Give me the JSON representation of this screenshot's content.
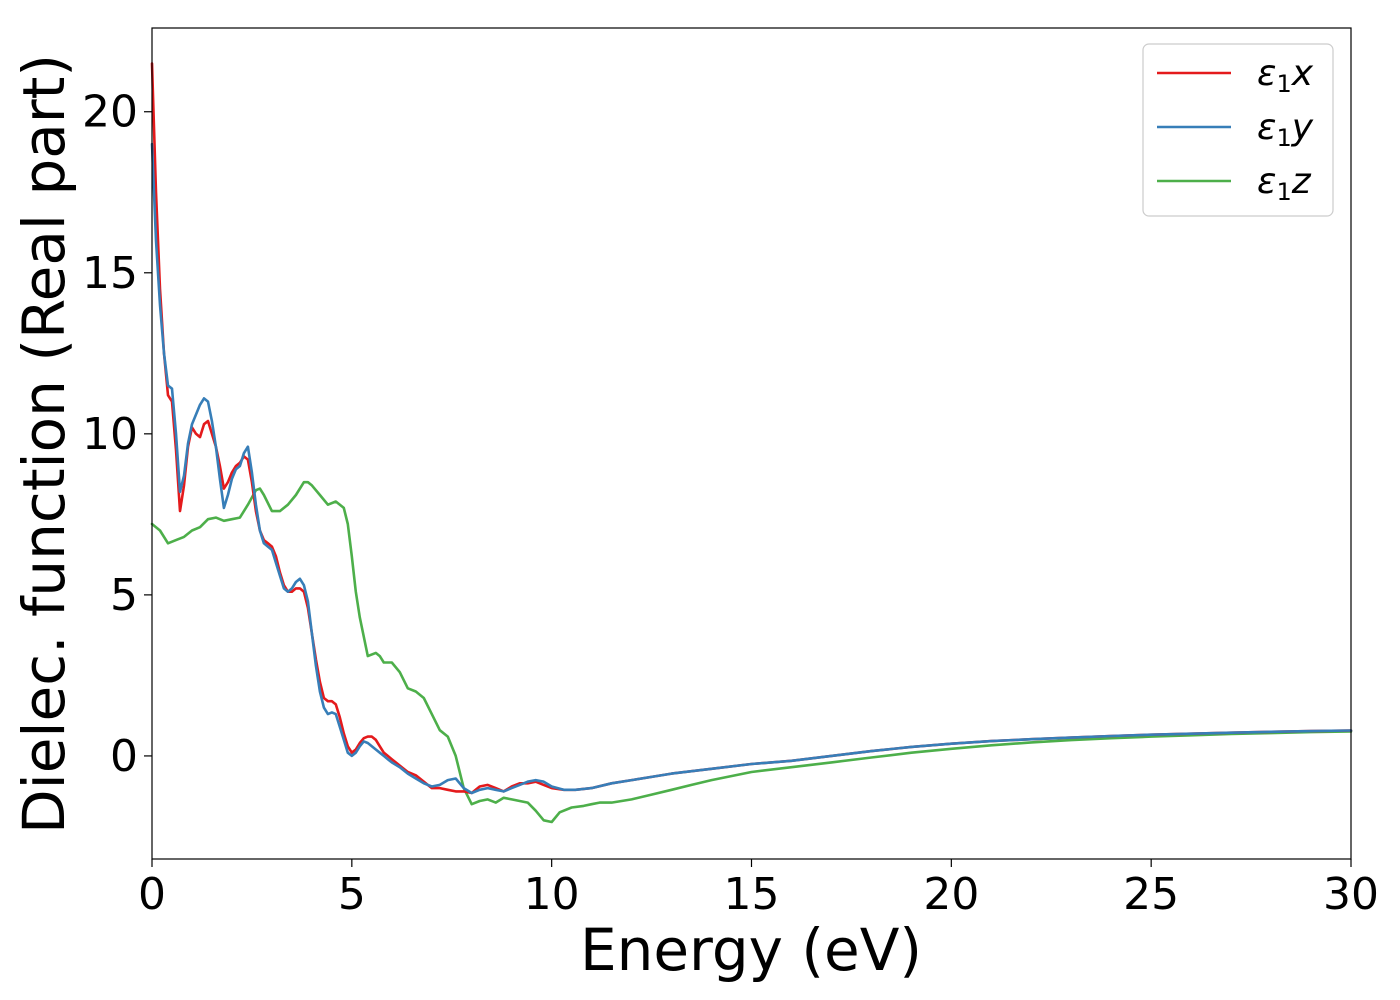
{
  "chart_data": {
    "type": "line",
    "title": "",
    "xlabel": "Energy (eV)",
    "ylabel": "Dielec. function (Real part)",
    "xlim": [
      0,
      30
    ],
    "ylim": [
      -3.2,
      22.6
    ],
    "xticks": [
      0,
      5,
      10,
      15,
      20,
      25,
      30
    ],
    "yticks": [
      0,
      5,
      10,
      15,
      20
    ],
    "grid": false,
    "legend_position": "top-right",
    "series": [
      {
        "name": "ε1x",
        "legend_base": "ε",
        "legend_sub": "1",
        "legend_axis": "x",
        "color": "#e41a1c",
        "x": [
          0.0,
          0.1,
          0.2,
          0.3,
          0.4,
          0.5,
          0.6,
          0.7,
          0.8,
          0.9,
          1.0,
          1.1,
          1.2,
          1.3,
          1.4,
          1.5,
          1.6,
          1.7,
          1.8,
          1.9,
          2.0,
          2.1,
          2.2,
          2.3,
          2.4,
          2.5,
          2.6,
          2.7,
          2.8,
          2.9,
          3.0,
          3.1,
          3.2,
          3.3,
          3.4,
          3.5,
          3.6,
          3.7,
          3.8,
          3.9,
          4.0,
          4.1,
          4.2,
          4.3,
          4.4,
          4.5,
          4.6,
          4.7,
          4.8,
          4.9,
          5.0,
          5.1,
          5.2,
          5.3,
          5.4,
          5.5,
          5.6,
          5.7,
          5.8,
          5.9,
          6.0,
          6.2,
          6.4,
          6.6,
          6.8,
          7.0,
          7.2,
          7.4,
          7.6,
          7.8,
          8.0,
          8.2,
          8.4,
          8.6,
          8.8,
          9.0,
          9.2,
          9.4,
          9.6,
          9.8,
          10.0,
          10.3,
          10.6,
          11.0,
          11.5,
          12.0,
          12.5,
          13.0,
          14.0,
          15.0,
          16.0,
          17.0,
          18.0,
          19.0,
          20.0,
          21.0,
          22.0,
          23.0,
          24.0,
          25.0,
          26.0,
          27.0,
          28.0,
          29.0,
          30.0
        ],
        "y": [
          21.5,
          17.5,
          14.5,
          12.5,
          11.2,
          11.0,
          9.5,
          7.6,
          8.4,
          9.6,
          10.2,
          10.0,
          9.9,
          10.3,
          10.4,
          10.0,
          9.6,
          9.0,
          8.3,
          8.5,
          8.8,
          9.0,
          9.1,
          9.3,
          9.2,
          8.5,
          7.6,
          7.0,
          6.7,
          6.6,
          6.5,
          6.2,
          5.7,
          5.3,
          5.1,
          5.1,
          5.2,
          5.2,
          5.1,
          4.6,
          3.8,
          3.0,
          2.3,
          1.8,
          1.7,
          1.7,
          1.6,
          1.2,
          0.7,
          0.3,
          0.1,
          0.2,
          0.4,
          0.55,
          0.6,
          0.6,
          0.5,
          0.3,
          0.1,
          0.0,
          -0.1,
          -0.3,
          -0.5,
          -0.6,
          -0.8,
          -1.0,
          -1.0,
          -1.05,
          -1.1,
          -1.1,
          -1.15,
          -0.95,
          -0.9,
          -1.0,
          -1.1,
          -0.95,
          -0.85,
          -0.85,
          -0.8,
          -0.9,
          -1.0,
          -1.05,
          -1.05,
          -1.0,
          -0.85,
          -0.75,
          -0.65,
          -0.55,
          -0.4,
          -0.25,
          -0.15,
          0.0,
          0.15,
          0.28,
          0.38,
          0.46,
          0.52,
          0.57,
          0.62,
          0.66,
          0.69,
          0.72,
          0.75,
          0.77,
          0.79
        ]
      },
      {
        "name": "ε1y",
        "legend_base": "ε",
        "legend_sub": "1",
        "legend_axis": "y",
        "color": "#377eb8",
        "x": [
          0.0,
          0.1,
          0.2,
          0.3,
          0.4,
          0.5,
          0.6,
          0.7,
          0.8,
          0.9,
          1.0,
          1.1,
          1.2,
          1.3,
          1.4,
          1.5,
          1.6,
          1.7,
          1.8,
          1.9,
          2.0,
          2.1,
          2.2,
          2.3,
          2.4,
          2.5,
          2.6,
          2.7,
          2.8,
          2.9,
          3.0,
          3.1,
          3.2,
          3.3,
          3.4,
          3.5,
          3.6,
          3.7,
          3.8,
          3.9,
          4.0,
          4.1,
          4.2,
          4.3,
          4.4,
          4.5,
          4.6,
          4.7,
          4.8,
          4.9,
          5.0,
          5.1,
          5.2,
          5.3,
          5.4,
          5.5,
          5.6,
          5.7,
          5.8,
          5.9,
          6.0,
          6.2,
          6.4,
          6.6,
          6.8,
          7.0,
          7.2,
          7.4,
          7.6,
          7.8,
          8.0,
          8.2,
          8.4,
          8.6,
          8.8,
          9.0,
          9.2,
          9.4,
          9.6,
          9.8,
          10.0,
          10.3,
          10.6,
          11.0,
          11.5,
          12.0,
          12.5,
          13.0,
          14.0,
          15.0,
          16.0,
          17.0,
          18.0,
          19.0,
          20.0,
          21.0,
          22.0,
          23.0,
          24.0,
          25.0,
          26.0,
          27.0,
          28.0,
          29.0,
          30.0
        ],
        "y": [
          19.0,
          16.0,
          14.0,
          12.5,
          11.5,
          11.4,
          10.0,
          8.2,
          8.7,
          9.7,
          10.3,
          10.6,
          10.9,
          11.1,
          11.0,
          10.4,
          9.6,
          8.6,
          7.7,
          8.1,
          8.6,
          8.9,
          9.0,
          9.4,
          9.6,
          8.8,
          7.8,
          7.0,
          6.6,
          6.5,
          6.4,
          6.0,
          5.6,
          5.2,
          5.1,
          5.2,
          5.4,
          5.5,
          5.3,
          4.8,
          3.8,
          2.8,
          2.0,
          1.5,
          1.3,
          1.35,
          1.3,
          0.9,
          0.5,
          0.1,
          0.0,
          0.1,
          0.3,
          0.45,
          0.4,
          0.3,
          0.2,
          0.1,
          0.0,
          -0.1,
          -0.2,
          -0.35,
          -0.55,
          -0.7,
          -0.85,
          -0.95,
          -0.9,
          -0.75,
          -0.7,
          -1.0,
          -1.15,
          -1.05,
          -1.0,
          -1.05,
          -1.1,
          -1.0,
          -0.9,
          -0.8,
          -0.75,
          -0.8,
          -0.95,
          -1.05,
          -1.05,
          -1.0,
          -0.85,
          -0.75,
          -0.65,
          -0.55,
          -0.4,
          -0.25,
          -0.15,
          0.0,
          0.15,
          0.28,
          0.38,
          0.46,
          0.52,
          0.57,
          0.62,
          0.66,
          0.69,
          0.72,
          0.75,
          0.77,
          0.79
        ]
      },
      {
        "name": "ε1z",
        "legend_base": "ε",
        "legend_sub": "1",
        "legend_axis": "z",
        "color": "#4daf4a",
        "x": [
          0.0,
          0.2,
          0.4,
          0.6,
          0.8,
          1.0,
          1.2,
          1.4,
          1.6,
          1.8,
          2.0,
          2.2,
          2.4,
          2.6,
          2.7,
          2.8,
          3.0,
          3.2,
          3.4,
          3.6,
          3.8,
          3.9,
          4.0,
          4.2,
          4.4,
          4.6,
          4.8,
          4.9,
          5.0,
          5.1,
          5.2,
          5.4,
          5.6,
          5.7,
          5.8,
          6.0,
          6.2,
          6.4,
          6.6,
          6.8,
          7.0,
          7.2,
          7.4,
          7.6,
          7.8,
          8.0,
          8.2,
          8.4,
          8.6,
          8.8,
          9.0,
          9.2,
          9.4,
          9.6,
          9.8,
          10.0,
          10.2,
          10.5,
          10.8,
          11.0,
          11.2,
          11.5,
          12.0,
          12.5,
          13.0,
          13.5,
          14.0,
          15.0,
          16.0,
          17.0,
          18.0,
          19.0,
          20.0,
          21.0,
          22.0,
          23.0,
          24.0,
          25.0,
          26.0,
          27.0,
          28.0,
          29.0,
          30.0
        ],
        "y": [
          7.2,
          7.0,
          6.6,
          6.7,
          6.8,
          7.0,
          7.1,
          7.35,
          7.4,
          7.3,
          7.35,
          7.4,
          7.8,
          8.25,
          8.3,
          8.1,
          7.6,
          7.6,
          7.8,
          8.1,
          8.5,
          8.5,
          8.4,
          8.1,
          7.8,
          7.9,
          7.7,
          7.2,
          6.2,
          5.1,
          4.3,
          3.1,
          3.2,
          3.1,
          2.9,
          2.9,
          2.6,
          2.1,
          2.0,
          1.8,
          1.3,
          0.8,
          0.6,
          0.0,
          -1.0,
          -1.5,
          -1.4,
          -1.35,
          -1.45,
          -1.3,
          -1.35,
          -1.4,
          -1.45,
          -1.7,
          -2.0,
          -2.05,
          -1.75,
          -1.6,
          -1.55,
          -1.5,
          -1.45,
          -1.45,
          -1.35,
          -1.2,
          -1.05,
          -0.9,
          -0.75,
          -0.5,
          -0.35,
          -0.2,
          -0.05,
          0.1,
          0.22,
          0.33,
          0.42,
          0.49,
          0.55,
          0.6,
          0.64,
          0.68,
          0.71,
          0.74,
          0.76
        ]
      }
    ]
  }
}
